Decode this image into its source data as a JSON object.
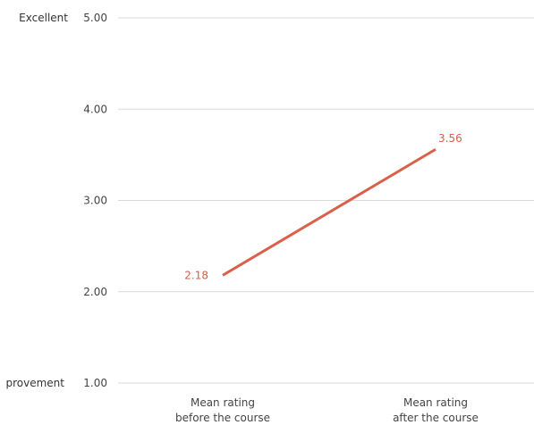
{
  "chart_data": {
    "type": "line",
    "categories": [
      [
        "Mean rating",
        "before the course"
      ],
      [
        "Mean rating",
        "after the course"
      ]
    ],
    "series": [
      {
        "values": [
          2.18,
          3.56
        ],
        "color": "#d9604a"
      }
    ],
    "data_labels": [
      "2.18",
      "3.56"
    ],
    "y_ticks": [
      "1.00",
      "2.00",
      "3.00",
      "4.00",
      "5.00"
    ],
    "ylim": [
      1,
      5
    ],
    "scale_labels": {
      "top": "Excellent",
      "bottom": "provement"
    },
    "grid": true,
    "grid_color": "#d9d9d9",
    "legend": "none"
  }
}
